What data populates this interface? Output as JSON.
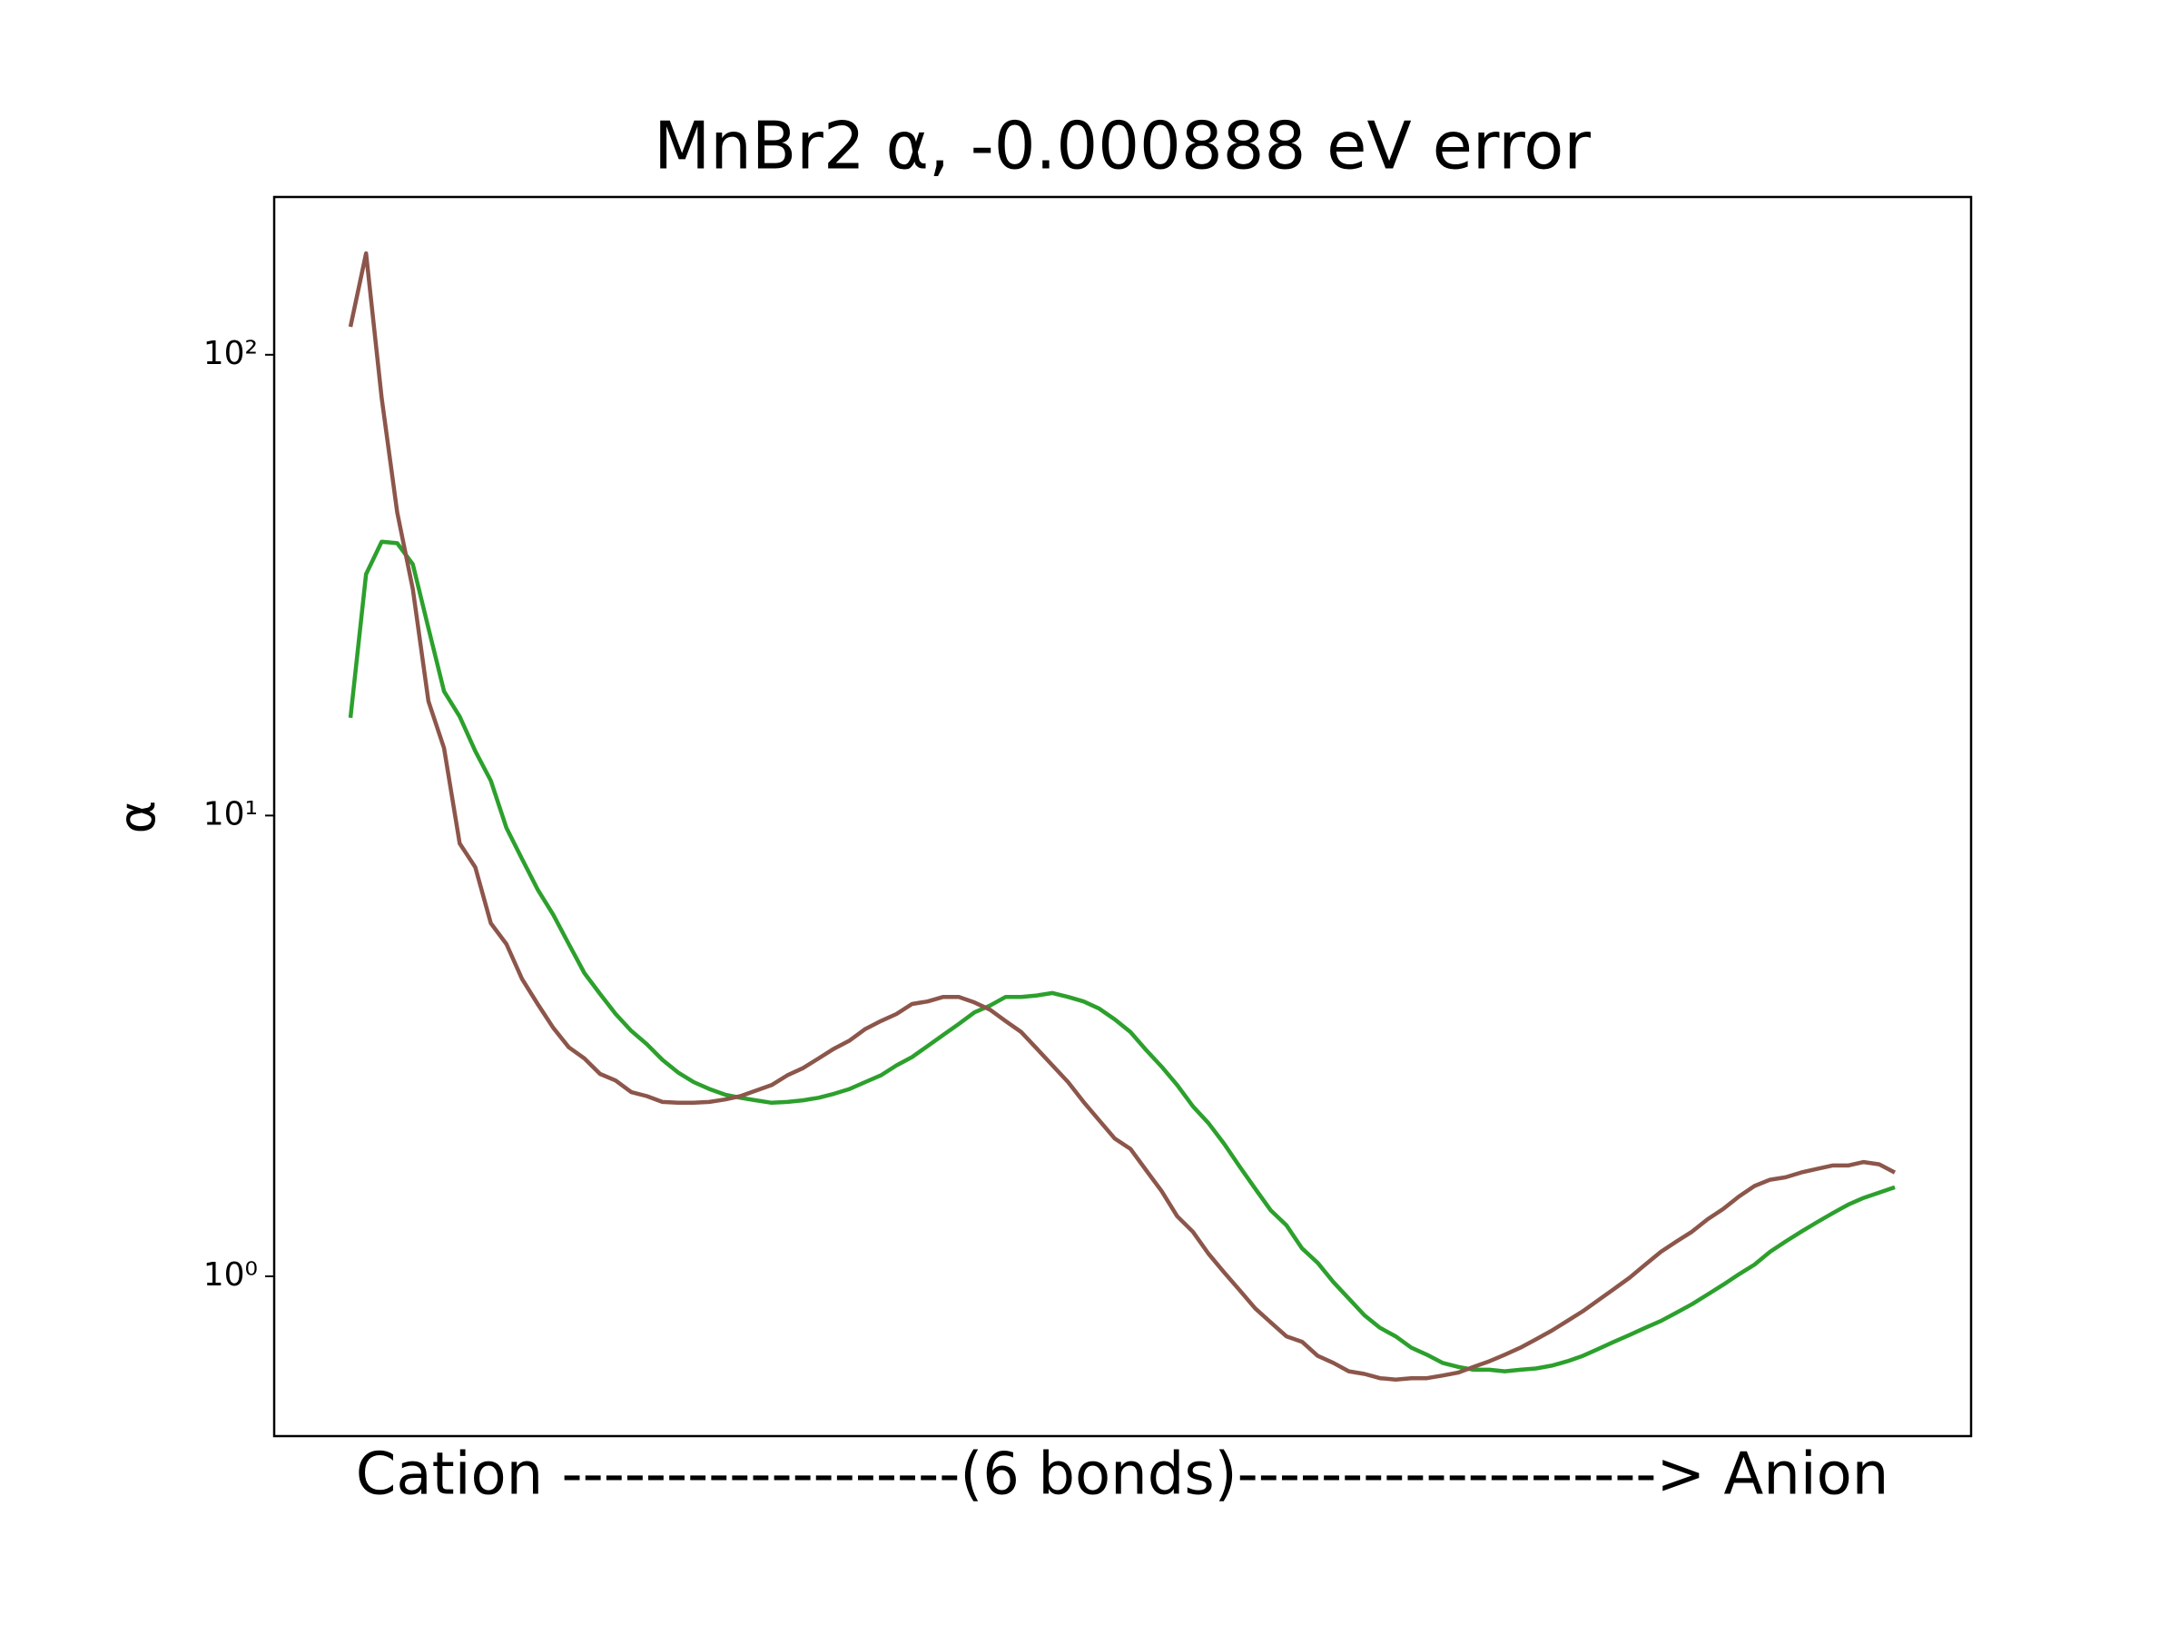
{
  "chart_data": {
    "type": "line",
    "title": "MnBr2 α, -0.000888 eV error",
    "xlabel": "Cation -------------------(6 bonds)--------------------> Anion",
    "ylabel": "α",
    "yscale": "log",
    "ylim": [
      0.45,
      220
    ],
    "yticks": [
      {
        "value": 1,
        "label": "10⁰"
      },
      {
        "value": 10,
        "label": "10¹"
      },
      {
        "value": 100,
        "label": "10²"
      }
    ],
    "series": [
      {
        "color": "#2ca02c",
        "values": [
          16.3,
          33.4,
          39.3,
          39,
          35.1,
          25.5,
          18.6,
          16.4,
          13.8,
          11.9,
          9.4,
          8.05,
          6.91,
          6.09,
          5.26,
          4.55,
          4.1,
          3.71,
          3.41,
          3.19,
          2.95,
          2.77,
          2.64,
          2.55,
          2.48,
          2.44,
          2.41,
          2.38,
          2.39,
          2.41,
          2.44,
          2.49,
          2.55,
          2.64,
          2.73,
          2.87,
          2.99,
          3.16,
          3.34,
          3.53,
          3.74,
          3.87,
          4.04,
          4.04,
          4.07,
          4.12,
          4.04,
          3.95,
          3.81,
          3.61,
          3.39,
          3.1,
          2.85,
          2.6,
          2.34,
          2.15,
          1.94,
          1.73,
          1.55,
          1.39,
          1.29,
          1.15,
          1.07,
          0.972,
          0.895,
          0.823,
          0.773,
          0.741,
          0.7,
          0.676,
          0.649,
          0.636,
          0.627,
          0.627,
          0.622,
          0.627,
          0.631,
          0.64,
          0.654,
          0.672,
          0.696,
          0.721,
          0.746,
          0.773,
          0.8,
          0.834,
          0.87,
          0.913,
          0.959,
          1.01,
          1.06,
          1.13,
          1.19,
          1.25,
          1.31,
          1.37,
          1.43,
          1.48,
          1.52,
          1.56
        ]
      },
      {
        "color": "#8c564b",
        "values": [
          115,
          166,
          80.5,
          45.5,
          31.0,
          17.7,
          14.0,
          8.7,
          7.72,
          5.84,
          5.26,
          4.42,
          3.9,
          3.46,
          3.14,
          2.97,
          2.75,
          2.66,
          2.51,
          2.46,
          2.39,
          2.38,
          2.38,
          2.39,
          2.42,
          2.46,
          2.53,
          2.6,
          2.73,
          2.83,
          2.97,
          3.12,
          3.25,
          3.44,
          3.58,
          3.71,
          3.9,
          3.95,
          4.04,
          4.04,
          3.93,
          3.79,
          3.58,
          3.39,
          3.12,
          2.87,
          2.64,
          2.39,
          2.18,
          1.99,
          1.89,
          1.7,
          1.53,
          1.35,
          1.25,
          1.12,
          1.02,
          0.933,
          0.852,
          0.794,
          0.741,
          0.721,
          0.672,
          0.649,
          0.622,
          0.614,
          0.601,
          0.597,
          0.601,
          0.601,
          0.609,
          0.618,
          0.636,
          0.654,
          0.676,
          0.7,
          0.73,
          0.762,
          0.8,
          0.84,
          0.888,
          0.939,
          0.993,
          1.06,
          1.13,
          1.19,
          1.25,
          1.33,
          1.4,
          1.49,
          1.57,
          1.62,
          1.64,
          1.68,
          1.71,
          1.74,
          1.74,
          1.77,
          1.75,
          1.68
        ]
      }
    ]
  }
}
